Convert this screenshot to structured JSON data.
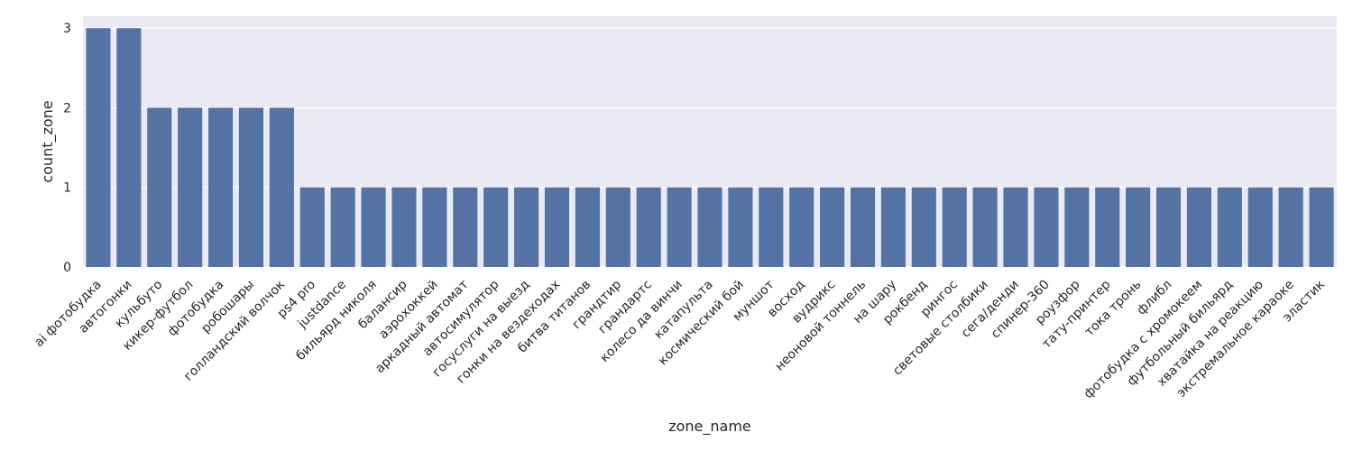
{
  "chart_data": {
    "type": "bar",
    "xlabel": "zone_name",
    "ylabel": "count_zone",
    "ylim": [
      0,
      3.15
    ],
    "yticks": [
      0,
      1,
      2,
      3
    ],
    "grid": true,
    "bar_color": "#5572a5",
    "plot_background": "#eaeaf2",
    "categories": [
      "ai фотобудка",
      "автогонки",
      "кульбуто",
      "кикер-футбол",
      "фотобудка",
      "робошары",
      "голландский волчок",
      "ps4 pro",
      "justdance",
      "бильярд николя",
      "балансир",
      "аэрохоккей",
      "аркадный автомат",
      "автосимулятор",
      "госуслуги на выезд",
      "гонки на вездеходах",
      "битва титанов",
      "грандтир",
      "грандартс",
      "колесо да винчи",
      "катапульта",
      "космический бой",
      "муншот",
      "восход",
      "вудрикс",
      "неоновой тоннель",
      "на шару",
      "рокбенд",
      "рингос",
      "световые столбики",
      "сега/денди",
      "спинер-360",
      "роузфор",
      "тату-принтер",
      "тока тронь",
      "флибл",
      "фотобудка с хромокеем",
      "футбольный бильярд",
      "хватайка на реакцию",
      "экстремальное караоке",
      "эластик"
    ],
    "values": [
      3,
      3,
      2,
      2,
      2,
      2,
      2,
      1,
      1,
      1,
      1,
      1,
      1,
      1,
      1,
      1,
      1,
      1,
      1,
      1,
      1,
      1,
      1,
      1,
      1,
      1,
      1,
      1,
      1,
      1,
      1,
      1,
      1,
      1,
      1,
      1,
      1,
      1,
      1,
      1,
      1
    ]
  }
}
